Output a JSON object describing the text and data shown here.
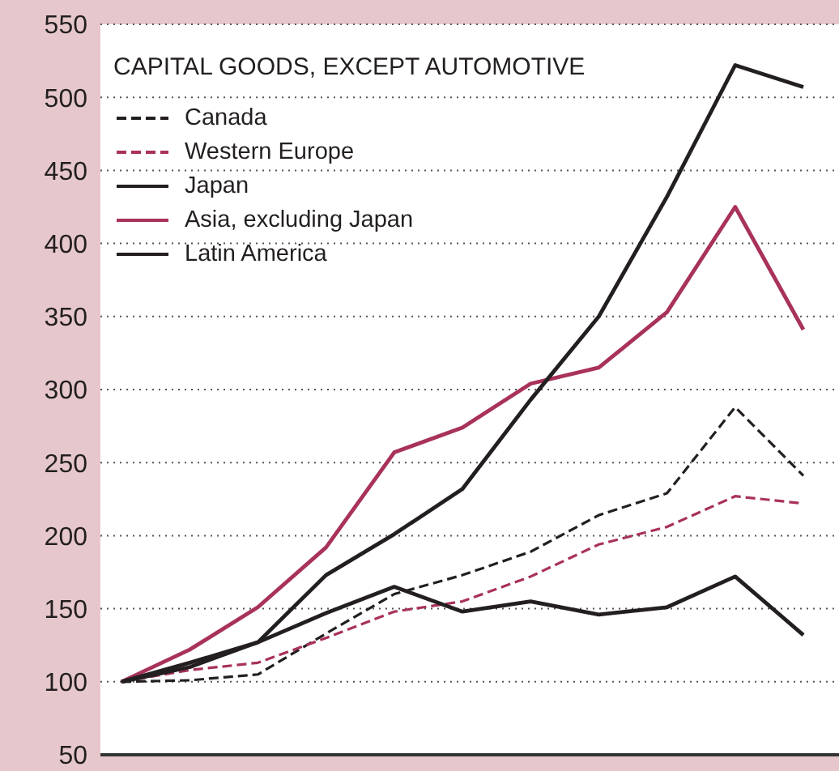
{
  "chart_data": {
    "type": "line",
    "title": "CAPITAL GOODS, EXCEPT AUTOMOTIVE",
    "categories": [
      null,
      null,
      null,
      null,
      null,
      null,
      null,
      null,
      null,
      null,
      null
    ],
    "series": [
      {
        "name": "Canada",
        "color": "#231f20",
        "line_style": "dashed",
        "values": [
          100,
          101,
          105,
          133,
          160,
          173,
          189,
          214,
          229,
          288,
          241
        ]
      },
      {
        "name": "Western Europe",
        "color": "#a8325a",
        "line_style": "dashed",
        "values": [
          100,
          108,
          113,
          130,
          148,
          155,
          172,
          194,
          206,
          227,
          222
        ]
      },
      {
        "name": "Japan",
        "color": "#231f20",
        "line_style": "solid",
        "values": [
          100,
          110,
          127,
          147,
          165,
          148,
          155,
          146,
          151,
          172,
          132
        ]
      },
      {
        "name": "Asia, excluding Japan",
        "color": "#a8325a",
        "line_style": "solid",
        "values": [
          100,
          122,
          151,
          192,
          257,
          274,
          304,
          315,
          353,
          425,
          341
        ]
      },
      {
        "name": "Latin America",
        "color": "#231f20",
        "line_style": "solid",
        "values": [
          100,
          113,
          127,
          173,
          201,
          232,
          293,
          350,
          432,
          522,
          507
        ]
      }
    ],
    "ylim": [
      50,
      550
    ],
    "yticks": [
      50,
      100,
      150,
      200,
      250,
      300,
      350,
      400,
      450,
      500,
      550
    ],
    "grid": "y",
    "legend": "top left",
    "tick_labels": "y",
    "marker": "none"
  }
}
